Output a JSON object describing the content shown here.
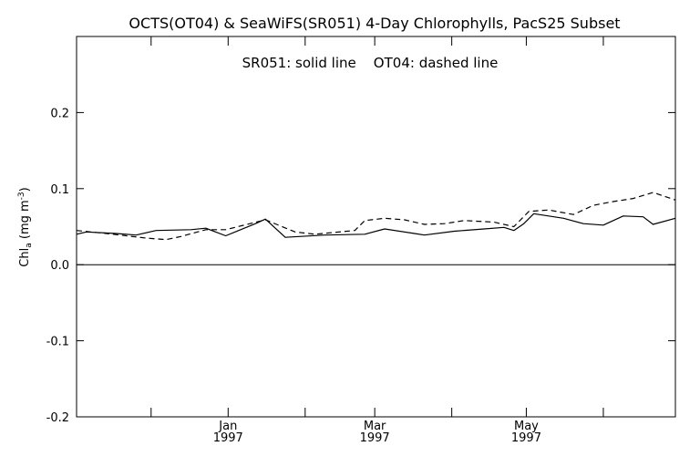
{
  "chart_data": {
    "type": "line",
    "title": "OCTS(OT04) & SeaWiFS(SR051) 4-Day Chlorophylls, PacS25 Subset",
    "annotation": "SR051: solid line    OT04: dashed line",
    "ylabel_main": "Chl",
    "ylabel_sub": "a",
    "ylabel_unit": "(mg m",
    "ylabel_exp": "-3",
    "ylabel_close": ")",
    "ylim": [
      -0.2,
      0.3
    ],
    "xlim": [
      "1996-11-01",
      "1997-06-30"
    ],
    "yticks": [
      {
        "value": -0.2,
        "label": "-0.2"
      },
      {
        "value": -0.1,
        "label": "-0.1"
      },
      {
        "value": 0.0,
        "label": "0.0"
      },
      {
        "value": 0.1,
        "label": "0.1"
      },
      {
        "value": 0.2,
        "label": "0.2"
      }
    ],
    "xticks": [
      {
        "date": "1997-01-01",
        "month": "Jan",
        "year": "1997"
      },
      {
        "date": "1997-03-01",
        "month": "Mar",
        "year": "1997"
      },
      {
        "date": "1997-05-01",
        "month": "May",
        "year": "1997"
      }
    ],
    "xminor_ticks": [
      "1996-12-01",
      "1997-02-01",
      "1997-04-01",
      "1997-06-01"
    ],
    "zero_line": true,
    "series": [
      {
        "name": "SR051",
        "style": "solid",
        "points": [
          {
            "x": "1996-11-01",
            "y": 0.04
          },
          {
            "x": "1996-11-05",
            "y": 0.043
          },
          {
            "x": "1996-11-17",
            "y": 0.041
          },
          {
            "x": "1996-11-25",
            "y": 0.039
          },
          {
            "x": "1996-12-03",
            "y": 0.045
          },
          {
            "x": "1996-12-17",
            "y": 0.046
          },
          {
            "x": "1996-12-23",
            "y": 0.048
          },
          {
            "x": "1996-12-31",
            "y": 0.038
          },
          {
            "x": "1997-01-12",
            "y": 0.054
          },
          {
            "x": "1997-01-16",
            "y": 0.06
          },
          {
            "x": "1997-01-24",
            "y": 0.036
          },
          {
            "x": "1997-02-09",
            "y": 0.039
          },
          {
            "x": "1997-02-25",
            "y": 0.04
          },
          {
            "x": "1997-03-05",
            "y": 0.047
          },
          {
            "x": "1997-03-17",
            "y": 0.041
          },
          {
            "x": "1997-03-21",
            "y": 0.039
          },
          {
            "x": "1997-04-02",
            "y": 0.044
          },
          {
            "x": "1997-04-14",
            "y": 0.047
          },
          {
            "x": "1997-04-22",
            "y": 0.049
          },
          {
            "x": "1997-04-26",
            "y": 0.045
          },
          {
            "x": "1997-04-30",
            "y": 0.054
          },
          {
            "x": "1997-05-04",
            "y": 0.067
          },
          {
            "x": "1997-05-16",
            "y": 0.061
          },
          {
            "x": "1997-05-24",
            "y": 0.054
          },
          {
            "x": "1997-06-01",
            "y": 0.052
          },
          {
            "x": "1997-06-09",
            "y": 0.064
          },
          {
            "x": "1997-06-17",
            "y": 0.063
          },
          {
            "x": "1997-06-21",
            "y": 0.053
          },
          {
            "x": "1997-06-30",
            "y": 0.061
          }
        ]
      },
      {
        "name": "OT04",
        "style": "dashed",
        "points": [
          {
            "x": "1996-11-01",
            "y": 0.045
          },
          {
            "x": "1996-11-13",
            "y": 0.041
          },
          {
            "x": "1996-11-29",
            "y": 0.035
          },
          {
            "x": "1996-12-07",
            "y": 0.033
          },
          {
            "x": "1996-12-13",
            "y": 0.037
          },
          {
            "x": "1996-12-23",
            "y": 0.046
          },
          {
            "x": "1996-12-31",
            "y": 0.046
          },
          {
            "x": "1997-01-16",
            "y": 0.059
          },
          {
            "x": "1997-01-28",
            "y": 0.043
          },
          {
            "x": "1997-02-05",
            "y": 0.04
          },
          {
            "x": "1997-02-21",
            "y": 0.045
          },
          {
            "x": "1997-02-25",
            "y": 0.058
          },
          {
            "x": "1997-03-05",
            "y": 0.061
          },
          {
            "x": "1997-03-13",
            "y": 0.059
          },
          {
            "x": "1997-03-21",
            "y": 0.053
          },
          {
            "x": "1997-03-29",
            "y": 0.054
          },
          {
            "x": "1997-04-06",
            "y": 0.058
          },
          {
            "x": "1997-04-18",
            "y": 0.056
          },
          {
            "x": "1997-04-26",
            "y": 0.05
          },
          {
            "x": "1997-05-02",
            "y": 0.07
          },
          {
            "x": "1997-05-10",
            "y": 0.072
          },
          {
            "x": "1997-05-20",
            "y": 0.066
          },
          {
            "x": "1997-05-28",
            "y": 0.078
          },
          {
            "x": "1997-06-05",
            "y": 0.083
          },
          {
            "x": "1997-06-13",
            "y": 0.087
          },
          {
            "x": "1997-06-21",
            "y": 0.095
          },
          {
            "x": "1997-06-30",
            "y": 0.085
          }
        ]
      }
    ]
  }
}
